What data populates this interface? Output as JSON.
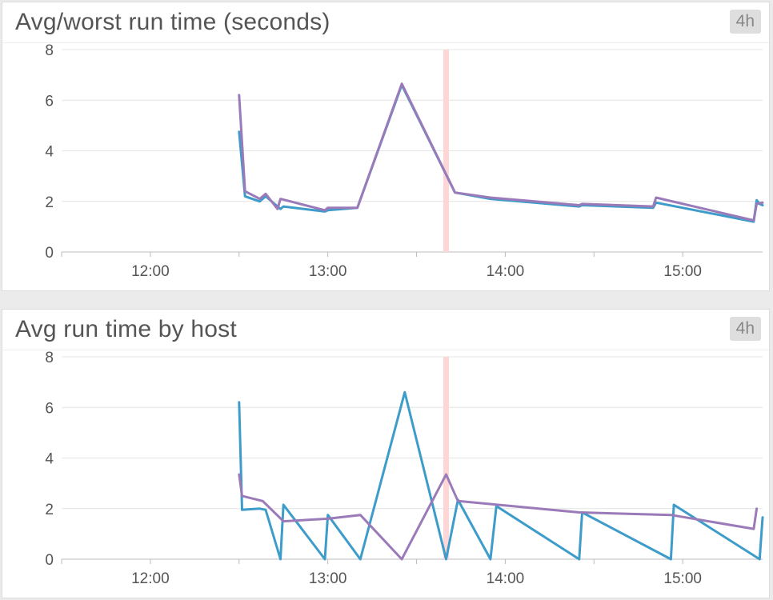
{
  "chart_data": [
    {
      "type": "line",
      "title": "Avg/worst run time (seconds)",
      "time_range": "4h",
      "xlim": [
        "11:30",
        "15:27"
      ],
      "ylim": [
        0,
        8
      ],
      "y_ticks": [
        0,
        2,
        4,
        6,
        8
      ],
      "x_ticks": [
        "12:00",
        "13:00",
        "14:00",
        "15:00"
      ],
      "grid": true,
      "event_marker": {
        "x": "13:40",
        "color": "#ffd6d6"
      },
      "series": [
        {
          "color": "#3d9cc9",
          "points": [
            [
              "12:30",
              4.75
            ],
            [
              "12:32",
              2.2
            ],
            [
              "12:37",
              2.0
            ],
            [
              "12:39",
              2.2
            ],
            [
              "12:44",
              1.7
            ],
            [
              "12:45",
              1.8
            ],
            [
              "12:59",
              1.6
            ],
            [
              "13:00",
              1.65
            ],
            [
              "13:10",
              1.75
            ],
            [
              "13:25",
              6.6
            ],
            [
              "13:43",
              2.35
            ],
            [
              "13:55",
              2.1
            ],
            [
              "14:25",
              1.8
            ],
            [
              "14:26",
              1.85
            ],
            [
              "14:50",
              1.75
            ],
            [
              "14:51",
              1.95
            ],
            [
              "15:24",
              1.2
            ],
            [
              "15:25",
              2.05
            ],
            [
              "15:26",
              1.9
            ],
            [
              "15:27",
              1.85
            ]
          ]
        },
        {
          "color": "#9a7ab8",
          "points": [
            [
              "12:30",
              6.2
            ],
            [
              "12:32",
              2.4
            ],
            [
              "12:37",
              2.1
            ],
            [
              "12:39",
              2.3
            ],
            [
              "12:43",
              1.7
            ],
            [
              "12:44",
              2.1
            ],
            [
              "12:59",
              1.65
            ],
            [
              "13:00",
              1.75
            ],
            [
              "13:10",
              1.75
            ],
            [
              "13:25",
              6.65
            ],
            [
              "13:43",
              2.35
            ],
            [
              "13:55",
              2.15
            ],
            [
              "14:25",
              1.85
            ],
            [
              "14:26",
              1.9
            ],
            [
              "14:50",
              1.8
            ],
            [
              "14:51",
              2.15
            ],
            [
              "15:24",
              1.25
            ],
            [
              "15:25",
              1.9
            ],
            [
              "15:27",
              1.95
            ]
          ]
        }
      ]
    },
    {
      "type": "line",
      "title": "Avg run time by host",
      "time_range": "4h",
      "xlim": [
        "11:30",
        "15:27"
      ],
      "ylim": [
        0,
        8
      ],
      "y_ticks": [
        0,
        2,
        4,
        6,
        8
      ],
      "x_ticks": [
        "12:00",
        "13:00",
        "14:00",
        "15:00"
      ],
      "grid": true,
      "event_marker": {
        "x": "13:40",
        "color": "#ffd6d6"
      },
      "series": [
        {
          "color": "#3d9cc9",
          "points": [
            [
              "12:30",
              6.2
            ],
            [
              "12:31",
              1.95
            ],
            [
              "12:37",
              2.0
            ],
            [
              "12:39",
              1.95
            ],
            [
              "12:44",
              0.0
            ],
            [
              "12:45",
              2.15
            ],
            [
              "12:59",
              0.0
            ],
            [
              "13:00",
              1.75
            ],
            [
              "13:11",
              0.0
            ],
            [
              "13:26",
              6.6
            ],
            [
              "13:40",
              0.0
            ],
            [
              "13:44",
              2.35
            ],
            [
              "13:55",
              0.0
            ],
            [
              "13:57",
              2.1
            ],
            [
              "14:25",
              0.0
            ],
            [
              "14:26",
              1.85
            ],
            [
              "14:56",
              0.0
            ],
            [
              "14:57",
              2.15
            ],
            [
              "15:26",
              0.0
            ],
            [
              "15:27",
              1.65
            ]
          ]
        },
        {
          "color": "#9a7ab8",
          "points": [
            [
              "12:30",
              3.35
            ],
            [
              "12:31",
              2.5
            ],
            [
              "12:38",
              2.3
            ],
            [
              "12:45",
              1.5
            ],
            [
              "13:00",
              1.6
            ],
            [
              "13:11",
              1.75
            ],
            [
              "13:25",
              0.0
            ],
            [
              "13:40",
              3.35
            ],
            [
              "13:44",
              2.3
            ],
            [
              "14:25",
              1.85
            ],
            [
              "14:56",
              1.75
            ],
            [
              "15:24",
              1.2
            ],
            [
              "15:25",
              2.0
            ]
          ]
        }
      ]
    }
  ]
}
